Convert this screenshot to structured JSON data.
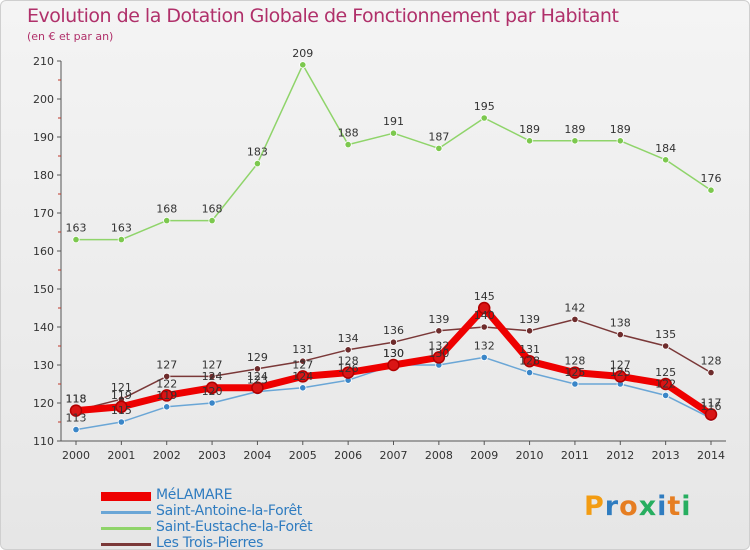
{
  "title": "Evolution de la Dotation Globale de Fonctionnement par Habitant",
  "subtitle": "(en € et par an)",
  "brand": {
    "letters": [
      "P",
      "r",
      "o",
      "x",
      "i",
      "t",
      "i"
    ],
    "colors": [
      "#f39c12",
      "#2f7cc0",
      "#e67e22",
      "#27ae60",
      "#2f7cc0",
      "#e67e22",
      "#27ae60"
    ]
  },
  "chart_data": {
    "type": "line",
    "title": "Evolution de la Dotation Globale de Fonctionnement par Habitant",
    "ylabel": "(en € et par an)",
    "xlabel": "",
    "ylim": [
      110,
      210
    ],
    "yticks": [
      110,
      120,
      130,
      140,
      150,
      160,
      170,
      180,
      190,
      200,
      210
    ],
    "categories": [
      "2000",
      "2001",
      "2002",
      "2003",
      "2004",
      "2005",
      "2006",
      "2007",
      "2008",
      "2009",
      "2010",
      "2011",
      "2012",
      "2013",
      "2014"
    ],
    "grid": false,
    "legend": "bottom-left",
    "series": [
      {
        "name": "Saint-Eustache-la-Forêt",
        "color": "#8fd46a",
        "marker": "#7cc84e",
        "values": [
          163,
          163,
          168,
          168,
          183,
          209,
          188,
          191,
          187,
          195,
          189,
          189,
          189,
          184,
          176
        ]
      },
      {
        "name": "Les Trois-Pierres",
        "color": "#7a3838",
        "marker": "#6e2c2c",
        "values": [
          118,
          121,
          127,
          127,
          129,
          131,
          134,
          136,
          139,
          140,
          139,
          142,
          138,
          135,
          128
        ]
      },
      {
        "name": "Saint-Antoine-la-Forêt",
        "color": "#6aa6d6",
        "marker": "#3a86c8",
        "values": [
          113,
          115,
          119,
          120,
          123,
          124,
          126,
          130,
          130,
          132,
          128,
          125,
          125,
          122,
          116
        ]
      },
      {
        "name": "MéLAMARE",
        "color": "#ee0000",
        "marker": "#d91515",
        "values": [
          118,
          119,
          122,
          124,
          124,
          127,
          128,
          130,
          132,
          145,
          131,
          128,
          127,
          125,
          117
        ]
      }
    ]
  },
  "legend_items": [
    {
      "name": "MéLAMARE",
      "color": "#ee0000"
    },
    {
      "name": "Saint-Antoine-la-Forêt",
      "color": "#6aa6d6"
    },
    {
      "name": "Saint-Eustache-la-Forêt",
      "color": "#8fd46a"
    },
    {
      "name": "Les Trois-Pierres",
      "color": "#7a3838"
    }
  ]
}
